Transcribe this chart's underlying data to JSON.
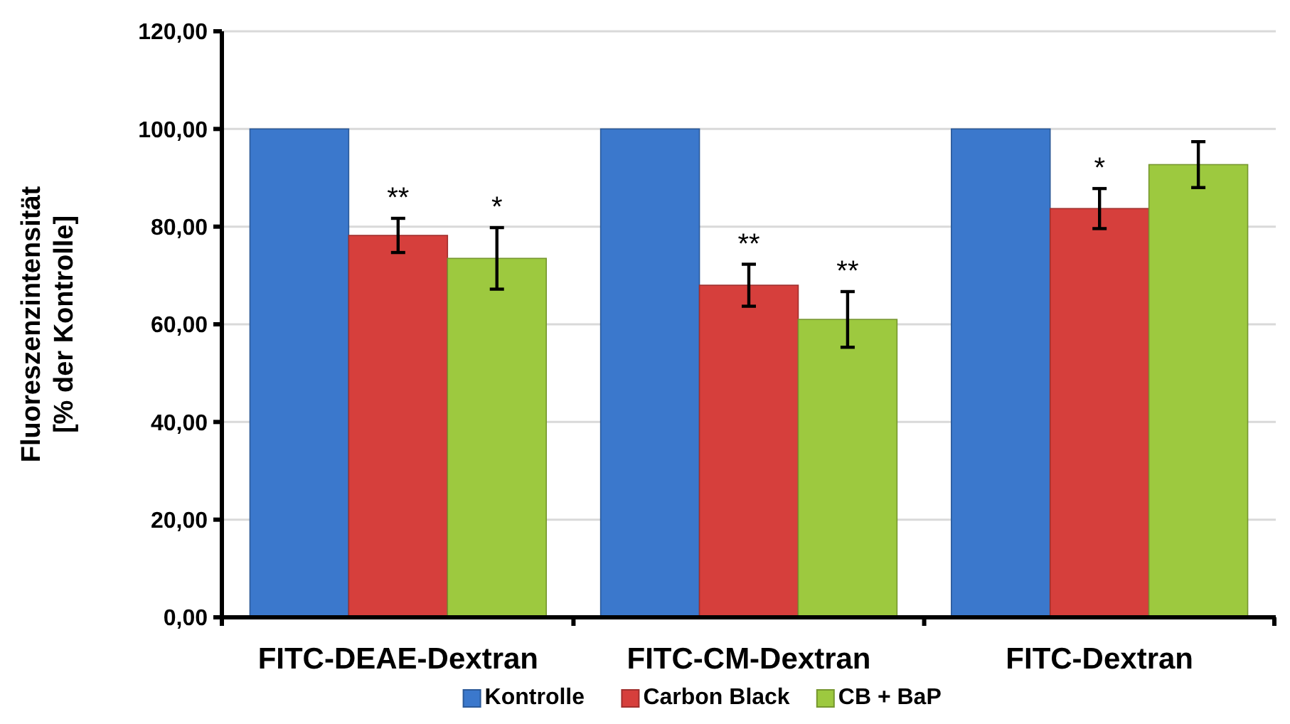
{
  "chart_data": {
    "type": "bar",
    "ylabel": "Fluoreszenzintensität\n[% der Kontrolle]",
    "categories": [
      "FITC-DEAE-Dextran",
      "FITC-CM-Dextran",
      "FITC-Dextran"
    ],
    "series": [
      {
        "name": "Kontrolle",
        "color": "#3b78cc",
        "values": [
          100,
          100,
          100
        ]
      },
      {
        "name": "Carbon Black",
        "color": "#d63f3c",
        "values": [
          78.2,
          68.0,
          83.7
        ],
        "errors": [
          3.5,
          4.3,
          4.1
        ]
      },
      {
        "name": "CB + BaP",
        "color": "#9dc93f",
        "values": [
          73.5,
          61.0,
          92.7
        ],
        "errors": [
          6.3,
          5.7,
          4.7
        ]
      }
    ],
    "ylim": [
      0,
      120
    ],
    "yticks": [
      {
        "value": 0,
        "label": "0,00"
      },
      {
        "value": 20,
        "label": "20,00"
      },
      {
        "value": 40,
        "label": "40,00"
      },
      {
        "value": 60,
        "label": "60,00"
      },
      {
        "value": 80,
        "label": "80,00"
      },
      {
        "value": 100,
        "label": "100,00"
      },
      {
        "value": 120,
        "label": "120,00"
      }
    ],
    "grid": "y",
    "legend": "bottom",
    "annotations": [
      "**",
      "*",
      "**",
      "**",
      "*"
    ]
  }
}
